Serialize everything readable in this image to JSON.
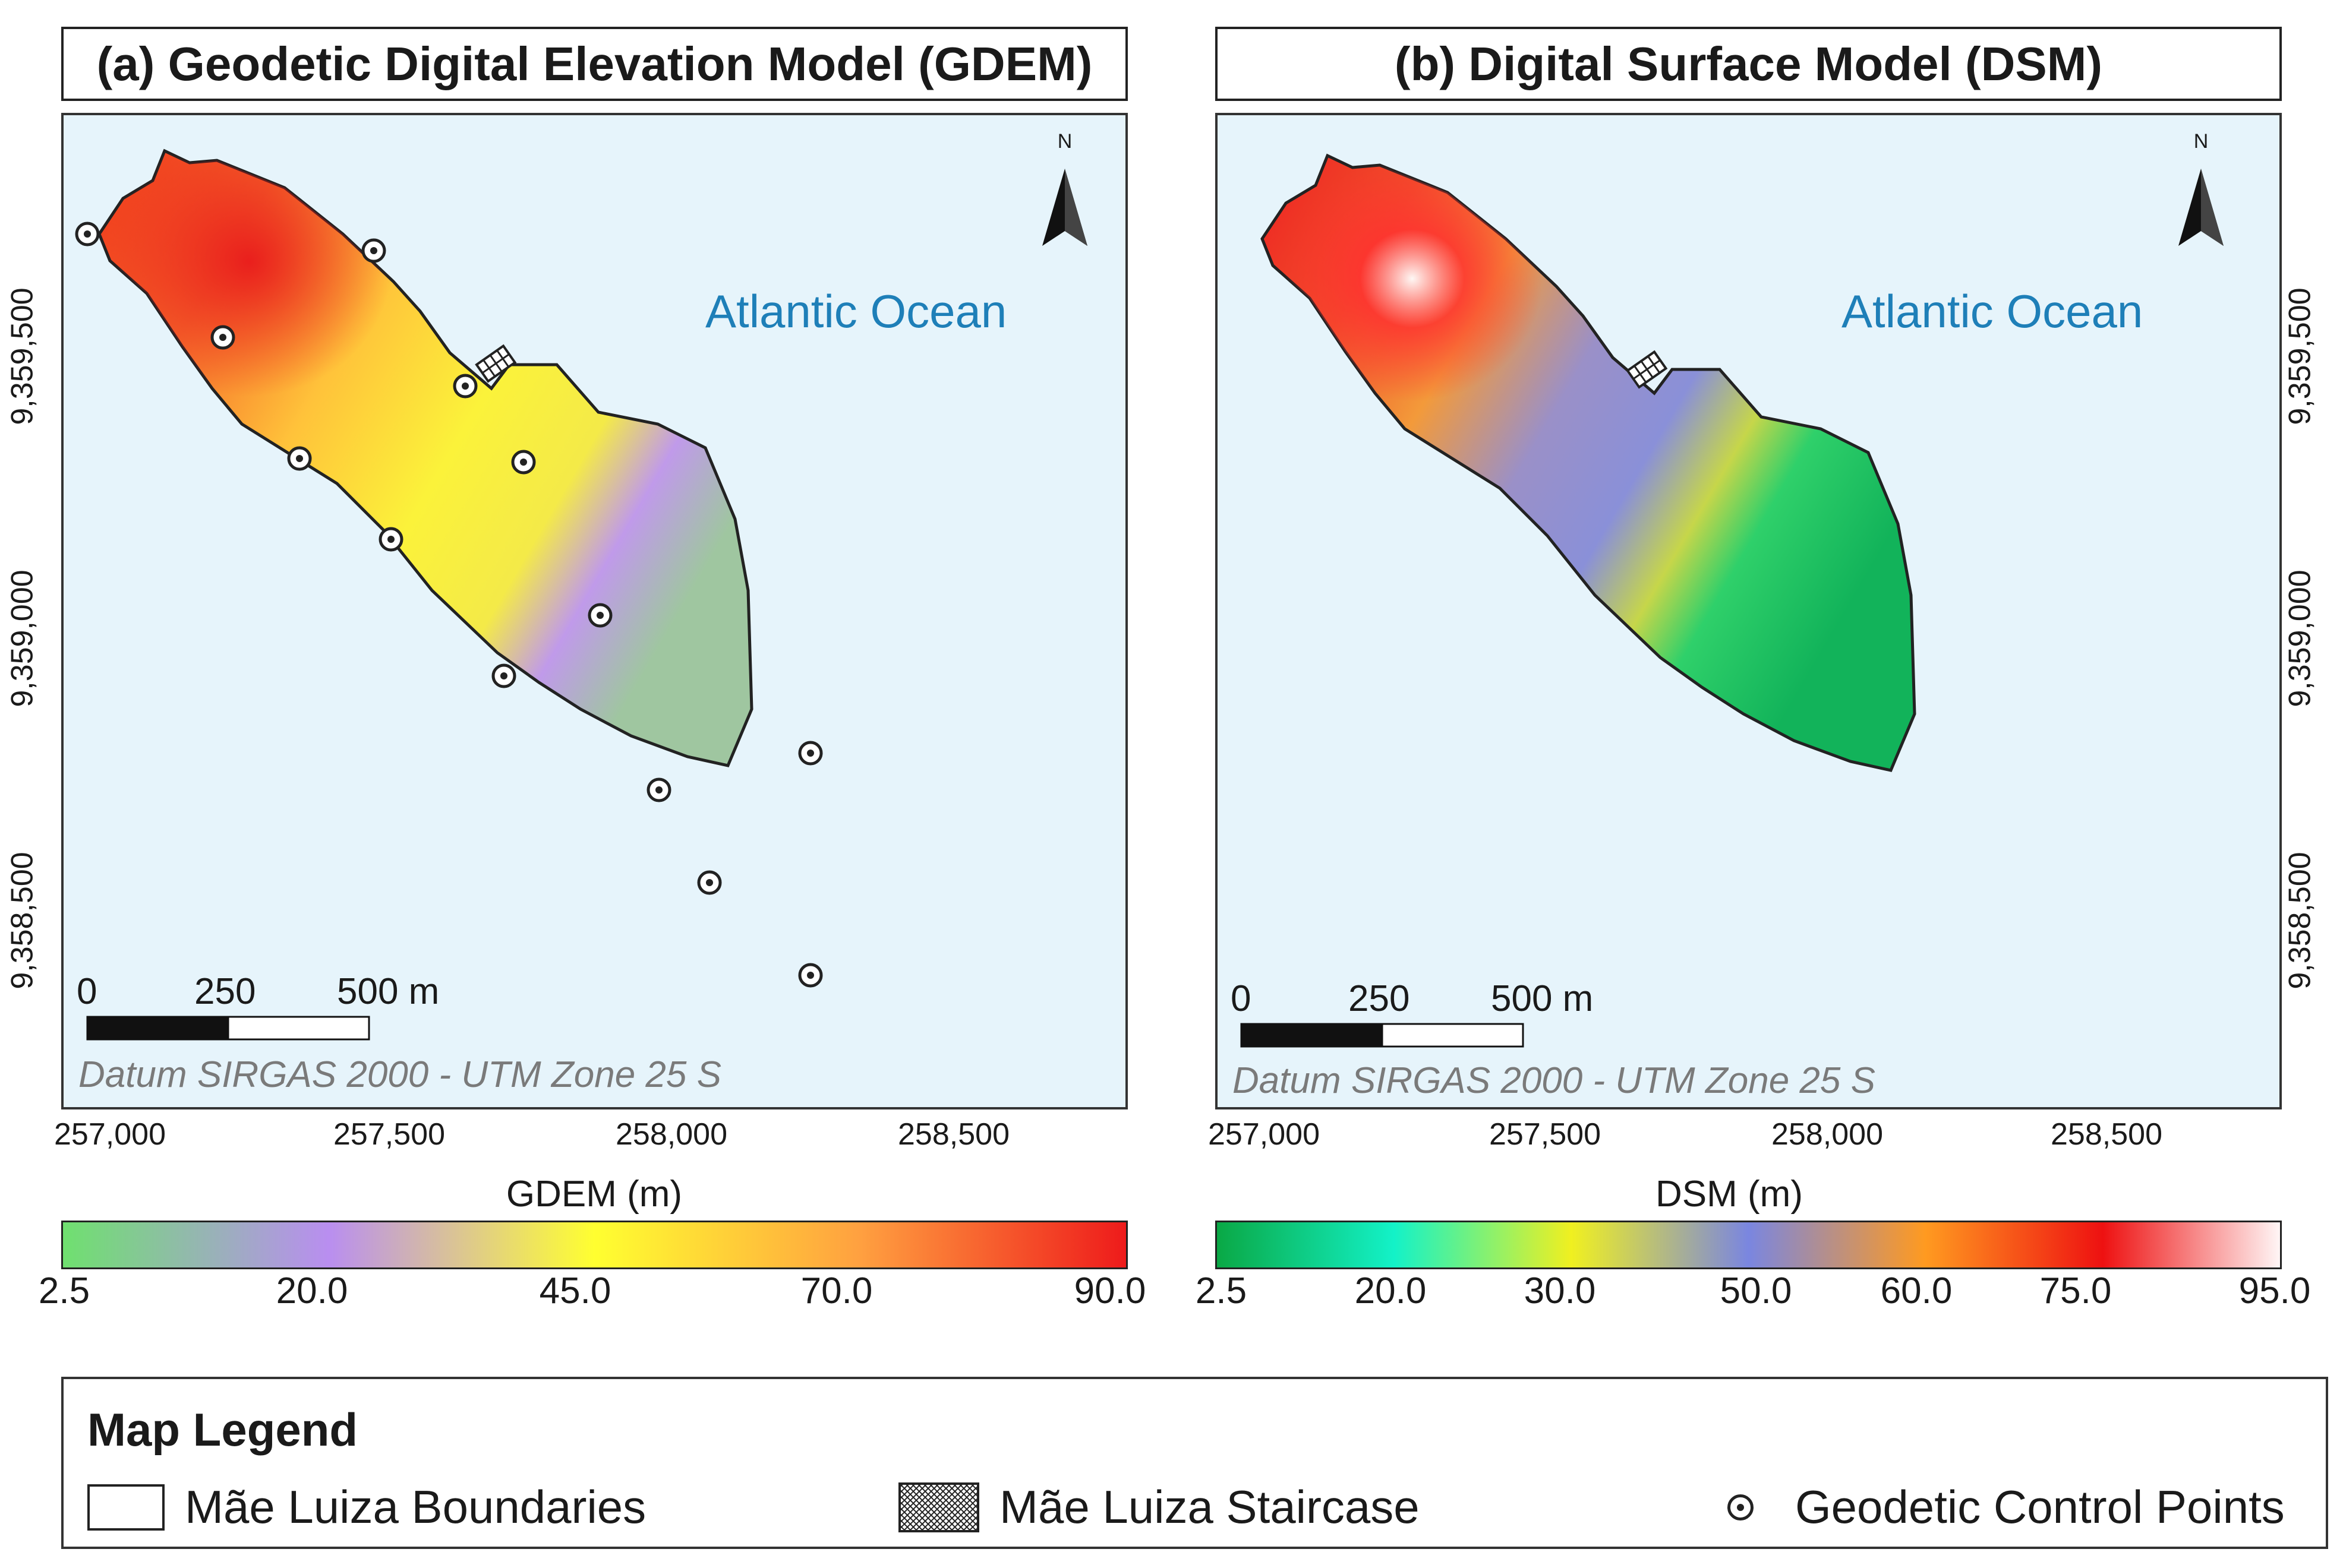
{
  "panel_a": {
    "title": "(a) Geodetic Digital Elevation Model (GDEM)",
    "ocean_label": "Atlantic Ocean",
    "north_label": "N",
    "scale": {
      "s0": "0",
      "s1": "250",
      "s2": "500 m"
    },
    "datum": "Datum SIRGAS 2000 - UTM Zone 25 S",
    "x_ticks": [
      "257,000",
      "257,500",
      "258,000",
      "258,500"
    ],
    "y_ticks": [
      "9,359,500",
      "9,359,000",
      "9,358,500"
    ],
    "colorbar": {
      "title": "GDEM (m)",
      "labels": [
        "2.5",
        "20.0",
        "45.0",
        "70.0",
        "90.0"
      ],
      "colors": [
        "#6fe06f",
        "#b98ef0",
        "#ffff30",
        "#ffa040",
        "#ee1b1b"
      ]
    }
  },
  "panel_b": {
    "title": "(b) Digital Surface Model (DSM)",
    "ocean_label": "Atlantic Ocean",
    "north_label": "N",
    "scale": {
      "s0": "0",
      "s1": "250",
      "s2": "500 m"
    },
    "datum": "Datum SIRGAS 2000 - UTM Zone 25 S",
    "x_ticks": [
      "257,000",
      "257,500",
      "258,000",
      "258,500"
    ],
    "y_ticks": [
      "9,359,500",
      "9,359,000",
      "9,358,500"
    ],
    "colorbar": {
      "title": "DSM (m)",
      "labels": [
        "2.5",
        "20.0",
        "30.0",
        "50.0",
        "60.0",
        "75.0",
        "95.0"
      ],
      "colors": [
        "#0aa845",
        "#13f2c8",
        "#f0f020",
        "#7a86e0",
        "#ff9a20",
        "#ee1111",
        "#fff5f5"
      ]
    }
  },
  "legend": {
    "title": "Map Legend",
    "boundaries": "Mãe Luiza Boundaries",
    "staircase": "Mãe Luiza Staircase",
    "control_points": "Geodetic Control Points"
  },
  "map_colors": {
    "ocean": "#e6f4fb",
    "boundary": "#222222"
  }
}
